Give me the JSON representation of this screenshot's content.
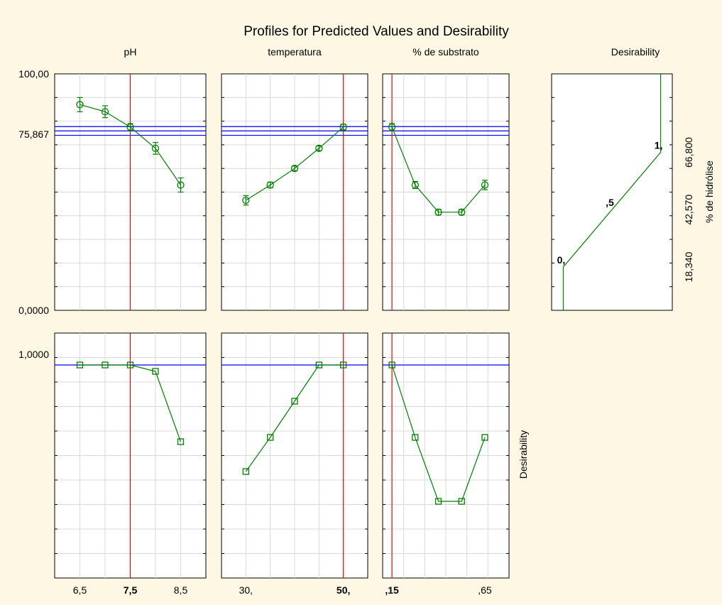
{
  "title": "Profiles for Predicted Values and Desirability",
  "colors": {
    "background": "#fdf7e3",
    "panel": "#ffffff",
    "grid": "#d9d9d9",
    "series": "#008000",
    "current": "#ff0000",
    "level": "#0000ff"
  },
  "chart_data": [
    {
      "type": "line",
      "title": "pH",
      "response": "% de hidrólise",
      "x": [
        6.5,
        7.0,
        7.5,
        8.0,
        8.5
      ],
      "xlim": [
        6.0,
        9.0
      ],
      "xticks": [
        "6,5",
        "7,5",
        "8,5"
      ],
      "current_x_label": "7,5",
      "current_x": 7.5,
      "y": [
        87.0,
        84.0,
        77.5,
        68.5,
        53.0
      ],
      "ci_low": [
        84.0,
        81.5,
        76.0,
        66.0,
        50.0
      ],
      "ci_high": [
        90.0,
        86.5,
        79.0,
        71.0,
        56.0
      ],
      "ylim": [
        0,
        100
      ],
      "yticks": [
        "100,00",
        "75,867",
        "0,0000"
      ],
      "current_y": 75.867,
      "ci_band": [
        74.0,
        77.7
      ],
      "desirability": [
        1.0,
        1.0,
        1.0,
        0.97,
        0.64
      ],
      "desirability_ylim": [
        0,
        1.15
      ],
      "desirability_tick": "1,0000"
    },
    {
      "type": "line",
      "title": "temperatura",
      "response": "% de hidrólise",
      "x": [
        30,
        35,
        40,
        45,
        50
      ],
      "xlim": [
        25,
        55
      ],
      "xticks": [
        "30,"
      ],
      "current_x_label": "50,",
      "current_x": 50,
      "y": [
        46.5,
        53.0,
        60.0,
        68.5,
        77.5
      ],
      "ci_low": [
        44.5,
        51.8,
        59.0,
        67.5,
        76.3
      ],
      "ci_high": [
        48.5,
        54.2,
        61.0,
        69.5,
        78.7
      ],
      "ylim": [
        0,
        100
      ],
      "current_y": 75.867,
      "ci_band": [
        74.0,
        77.7
      ],
      "desirability": [
        0.5,
        0.66,
        0.83,
        1.0,
        1.0
      ],
      "desirability_ylim": [
        0,
        1.15
      ]
    },
    {
      "type": "line",
      "title": "% de substrato",
      "response": "% de hidrólise",
      "x": [
        0.15,
        0.275,
        0.4,
        0.525,
        0.65
      ],
      "xlim": [
        0.1,
        0.78
      ],
      "xticks": [
        ",65"
      ],
      "current_x_label": ",15",
      "current_x": 0.15,
      "y": [
        77.5,
        53.0,
        41.5,
        41.5,
        53.0
      ],
      "ci_low": [
        76.0,
        51.5,
        40.3,
        40.3,
        51.0
      ],
      "ci_high": [
        79.0,
        54.5,
        42.7,
        42.7,
        55.0
      ],
      "ylim": [
        0,
        100
      ],
      "current_y": 75.867,
      "ci_band": [
        74.0,
        77.7
      ],
      "desirability": [
        1.0,
        0.66,
        0.36,
        0.36,
        0.66
      ],
      "desirability_ylim": [
        0,
        1.15
      ]
    },
    {
      "type": "line",
      "title": "Desirability",
      "ylabel": "% de hidrólise",
      "points": [
        [
          0,
          0
        ],
        [
          0,
          18.34
        ],
        [
          1,
          66.8
        ],
        [
          1,
          100
        ]
      ],
      "xlim": [
        -0.12,
        1.12
      ],
      "ylim": [
        0,
        100
      ],
      "point_labels": [
        "0,",
        ",5",
        "1,"
      ],
      "point_label_x": [
        0,
        0.5,
        1
      ],
      "point_label_y": [
        18.34,
        42.57,
        66.8
      ],
      "yticks": [
        "18,340",
        "42,570",
        "66,800"
      ],
      "ytick_values": [
        18.34,
        42.57,
        66.8
      ]
    }
  ],
  "desirability_axis_label": "Desirability"
}
